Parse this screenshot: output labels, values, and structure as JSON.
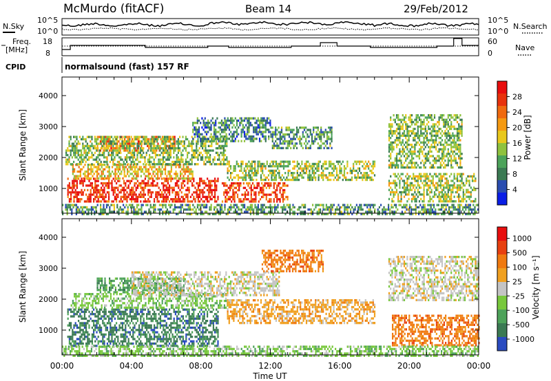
{
  "header": {
    "station": "McMurdo (fitACF)",
    "beam": "Beam 14",
    "date": "29/Feb/2012"
  },
  "noise_panel": {
    "left_label": "N.Sky",
    "right_label": "N.Search",
    "left_ticks": [
      "10^5",
      "10^0"
    ],
    "right_ticks": [
      "10^5",
      "10^0"
    ]
  },
  "freq_panel": {
    "left_label_line1": "Freq.",
    "left_label_line2": "[MHz]",
    "left_ticks": [
      "18",
      "8"
    ],
    "right_ticks": [
      "60",
      "0"
    ],
    "right_label": "Nave"
  },
  "cpid": {
    "label": "CPID",
    "text": "normalsound (fast) 157 RF"
  },
  "chart_data": [
    {
      "type": "heatmap",
      "name": "power",
      "ylabel": "Slant Range [km]",
      "ylim": [
        200,
        4600
      ],
      "yticks": [
        "1000",
        "2000",
        "3000",
        "4000"
      ],
      "colorbar": {
        "label": "Power [dB]",
        "ticks": [
          "4",
          "8",
          "12",
          "16",
          "20",
          "24",
          "28"
        ],
        "colors": [
          "#0a1ee6",
          "#2a4db0",
          "#3b7a53",
          "#4ca35a",
          "#8fc23e",
          "#e9c81c",
          "#f59a12",
          "#f06a0f",
          "#e8320c",
          "#e80e0e"
        ]
      },
      "regions": [
        {
          "t0": 0.3,
          "t1": 9.0,
          "r0": 550,
          "r1": 1350,
          "level": 0.92
        },
        {
          "t0": 9.2,
          "t1": 13.0,
          "r0": 600,
          "r1": 1200,
          "level": 0.85
        },
        {
          "t0": 0.5,
          "t1": 7.5,
          "r0": 1300,
          "r1": 1800,
          "level": 0.6
        },
        {
          "t0": 2.0,
          "t1": 6.5,
          "r0": 2200,
          "r1": 2700,
          "level": 0.75
        },
        {
          "t0": 0.2,
          "t1": 9.5,
          "r0": 1800,
          "r1": 2700,
          "level": 0.4
        },
        {
          "t0": 9.5,
          "t1": 18.0,
          "r0": 1300,
          "r1": 1900,
          "level": 0.45
        },
        {
          "t0": 7.5,
          "t1": 12.0,
          "r0": 2500,
          "r1": 3300,
          "level": 0.25
        },
        {
          "t0": 12.0,
          "t1": 15.5,
          "r0": 2300,
          "r1": 3000,
          "level": 0.3
        },
        {
          "t0": 18.8,
          "t1": 23.8,
          "r0": 600,
          "r1": 1500,
          "level": 0.45
        },
        {
          "t0": 18.8,
          "t1": 23.0,
          "r0": 1700,
          "r1": 3400,
          "level": 0.4
        },
        {
          "t0": 0.0,
          "t1": 24.0,
          "r0": 200,
          "r1": 500,
          "level": 0.3
        }
      ]
    },
    {
      "type": "heatmap",
      "name": "velocity",
      "ylabel": "Slant Range [km]",
      "xlabel": "Time UT",
      "xlim": [
        0,
        24
      ],
      "xticks": [
        "00:00",
        "04:00",
        "08:00",
        "12:00",
        "16:00",
        "20:00",
        "00:00"
      ],
      "ylim": [
        200,
        4600
      ],
      "yticks": [
        "1000",
        "2000",
        "3000",
        "4000"
      ],
      "colorbar": {
        "label": "Velocity [m s⁻¹]",
        "ticks": [
          "1000",
          "500",
          "100",
          "25",
          "-25",
          "-100",
          "-500",
          "-1000"
        ],
        "colors": [
          "#2a4bc0",
          "#3b7a53",
          "#4ea35a",
          "#78c83c",
          "#c4c4c4",
          "#f0a020",
          "#f07a10",
          "#e84010",
          "#e80e0e"
        ]
      },
      "regions": [
        {
          "t0": 0.3,
          "t1": 9.0,
          "r0": 500,
          "r1": 1700,
          "cls": 1
        },
        {
          "t0": 2.0,
          "t1": 7.0,
          "r0": 2200,
          "r1": 2700,
          "cls": 2
        },
        {
          "t0": 0.5,
          "t1": 9.5,
          "r0": 1700,
          "r1": 2200,
          "cls": 3
        },
        {
          "t0": 4.0,
          "t1": 12.5,
          "r0": 2100,
          "r1": 2900,
          "cls": 4
        },
        {
          "t0": 9.5,
          "t1": 18.0,
          "r0": 1200,
          "r1": 2000,
          "cls": 5
        },
        {
          "t0": 11.5,
          "t1": 15.0,
          "r0": 2900,
          "r1": 3600,
          "cls": 6
        },
        {
          "t0": 18.8,
          "t1": 24.0,
          "r0": 2000,
          "r1": 3400,
          "cls": 4
        },
        {
          "t0": 19.0,
          "t1": 24.0,
          "r0": 500,
          "r1": 1500,
          "cls": 6
        },
        {
          "t0": 0.0,
          "t1": 24.0,
          "r0": 200,
          "r1": 500,
          "cls": 3
        }
      ]
    }
  ]
}
